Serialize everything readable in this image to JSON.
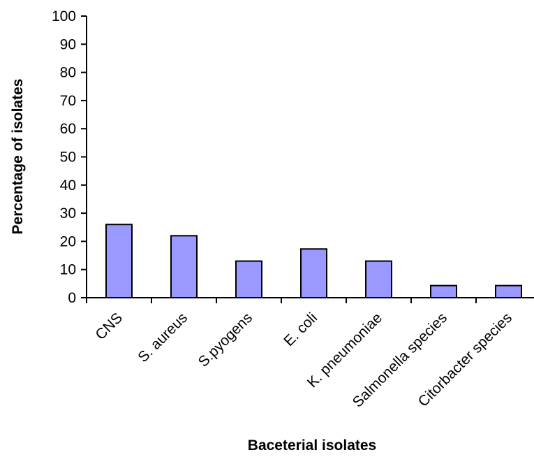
{
  "chart_data": {
    "type": "bar",
    "categories": [
      "CNS",
      "S. aureus",
      "S.pyogens",
      "E. coli",
      "K. pneumoniae",
      "Salmonella species",
      "Citorbacter species"
    ],
    "values": [
      26,
      22,
      13,
      17.3,
      13,
      4.3,
      4.3
    ],
    "title": "",
    "xlabel": "Baceterial isolates",
    "ylabel": "Percentage of isolates",
    "ylim": [
      0,
      100
    ],
    "yticks": [
      0,
      10,
      20,
      30,
      40,
      50,
      60,
      70,
      80,
      90,
      100
    ],
    "grid": false,
    "legend": "none",
    "bar_color": "#9999ff"
  }
}
